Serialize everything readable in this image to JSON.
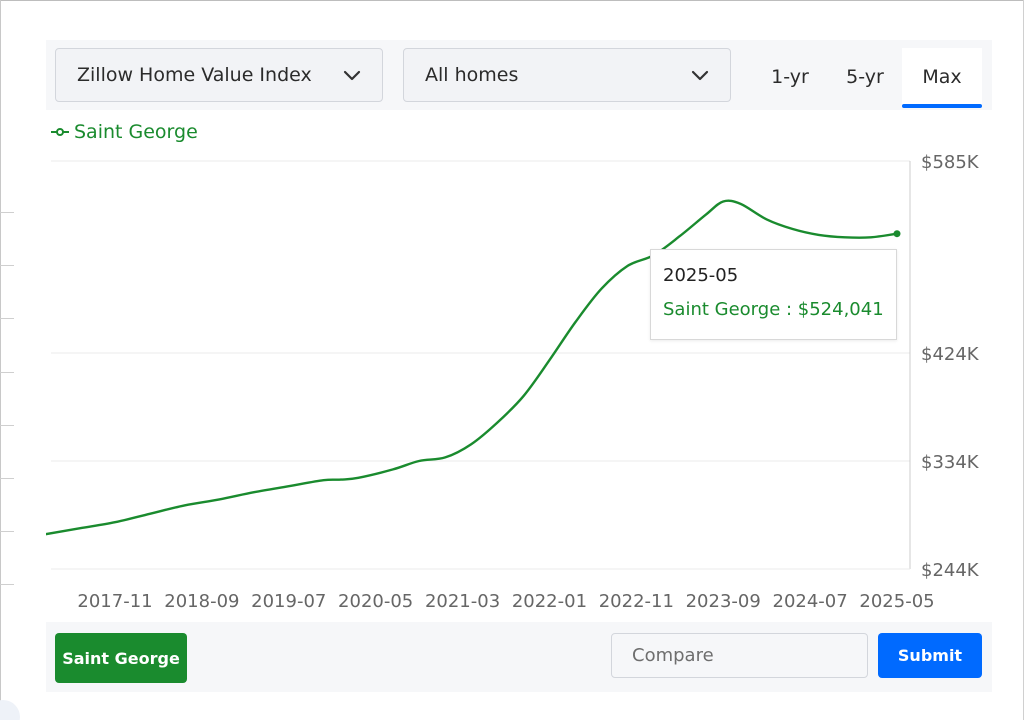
{
  "toolbar": {
    "metric": "Zillow Home Value Index",
    "home_type": "All homes",
    "ranges": [
      "1-yr",
      "5-yr",
      "Max"
    ],
    "active_range": "Max"
  },
  "legend": {
    "label": "Saint George"
  },
  "tooltip": {
    "date": "2025-05",
    "text": "Saint George : $524,041"
  },
  "bottom": {
    "location_label": "Saint George",
    "compare_placeholder": "Compare",
    "submit_label": "Submit"
  },
  "colors": {
    "series": "#1a8b2e",
    "accent": "#006aff",
    "grid": "#ebebeb",
    "axis": "#cccccc",
    "tick": "#666666"
  },
  "chart_data": {
    "type": "line",
    "title": "",
    "xlabel": "",
    "ylabel": "",
    "x_ticks": [
      "2017-11",
      "2018-09",
      "2019-07",
      "2020-05",
      "2021-03",
      "2022-01",
      "2022-11",
      "2023-09",
      "2024-07",
      "2025-05"
    ],
    "y_ticks": [
      {
        "value": 244000,
        "label": "$244K"
      },
      {
        "value": 334000,
        "label": "$334K"
      },
      {
        "value": 424000,
        "label": "$424K"
      },
      {
        "value": 585000,
        "label": "$585K"
      }
    ],
    "ylim": [
      244000,
      585000
    ],
    "grid": true,
    "legend_position": "top-left",
    "series": [
      {
        "name": "Saint George",
        "points": [
          [
            "2017-03",
            273000
          ],
          [
            "2017-07",
            278000
          ],
          [
            "2017-11",
            283000
          ],
          [
            "2018-03",
            290000
          ],
          [
            "2018-07",
            297000
          ],
          [
            "2018-11",
            302000
          ],
          [
            "2019-03",
            308000
          ],
          [
            "2019-07",
            313000
          ],
          [
            "2019-11",
            318000
          ],
          [
            "2020-01",
            318500
          ],
          [
            "2020-03",
            320000
          ],
          [
            "2020-07",
            327000
          ],
          [
            "2020-10",
            334000
          ],
          [
            "2021-01",
            337000
          ],
          [
            "2021-04",
            348000
          ],
          [
            "2021-07",
            366000
          ],
          [
            "2021-10",
            388000
          ],
          [
            "2022-01",
            418000
          ],
          [
            "2022-04",
            450000
          ],
          [
            "2022-07",
            478000
          ],
          [
            "2022-10",
            497000
          ],
          [
            "2023-01",
            506000
          ],
          [
            "2023-04",
            522000
          ],
          [
            "2023-07",
            540000
          ],
          [
            "2023-09",
            551000
          ],
          [
            "2023-11",
            549000
          ],
          [
            "2024-02",
            536000
          ],
          [
            "2024-05",
            528000
          ],
          [
            "2024-08",
            523000
          ],
          [
            "2024-11",
            521000
          ],
          [
            "2025-02",
            521000
          ],
          [
            "2025-05",
            524041
          ]
        ]
      }
    ]
  }
}
